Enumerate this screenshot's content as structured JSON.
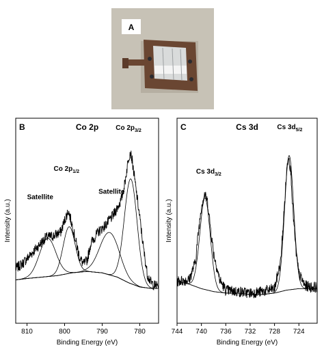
{
  "photo": {
    "label": "A",
    "colors": {
      "background": "#c7c2b6",
      "board": "#6a4632",
      "foil": "#d9dbdb",
      "label_box": "#ffffff"
    }
  },
  "chart_data": [
    {
      "type": "line",
      "panel_label": "B",
      "title": "Co 2p",
      "xlabel": "Binding Energy (eV)",
      "ylabel": "Intensity (a.u.)",
      "xlim": [
        813,
        775
      ],
      "x_reversed": true,
      "xticks": [
        810,
        800,
        790,
        780
      ],
      "yticks": false,
      "grid": false,
      "annotations": [
        {
          "text": "Satellite",
          "x": 806.5,
          "y": 0.63
        },
        {
          "text": "Co 2p",
          "sub": "1/2",
          "x": 799.5,
          "y": 0.83
        },
        {
          "text": "Satellite",
          "x": 787.5,
          "y": 0.67
        },
        {
          "text": "Co 2p",
          "sub": "3/2",
          "x": 783,
          "y": 1.12
        }
      ],
      "series": [
        {
          "type": "background",
          "x": [
            813,
            810,
            806,
            802,
            798,
            794,
            790,
            786,
            783,
            780,
            777,
            775
          ],
          "values": [
            0.06,
            0.07,
            0.08,
            0.09,
            0.11,
            0.12,
            0.11,
            0.08,
            0.04,
            0.01,
            0.0,
            0.0
          ]
        },
        {
          "type": "fit_peak",
          "center": 804.5,
          "height": 0.27,
          "width": 2.2
        },
        {
          "type": "fit_peak",
          "center": 798.8,
          "height": 0.33,
          "width": 1.6
        },
        {
          "type": "fit_peak",
          "center": 788.0,
          "height": 0.3,
          "width": 2.6
        },
        {
          "type": "fit_peak",
          "center": 782.4,
          "height": 0.74,
          "width": 1.7
        },
        {
          "type": "measured",
          "x": [
            813,
            811,
            809,
            807,
            805,
            803,
            801,
            800,
            799,
            798,
            797,
            796,
            795,
            794,
            793,
            791,
            789,
            787,
            785,
            784,
            783,
            782.5,
            782,
            781,
            780,
            779,
            778,
            777,
            776,
            775
          ],
          "values": [
            0.14,
            0.18,
            0.24,
            0.3,
            0.36,
            0.37,
            0.4,
            0.48,
            0.55,
            0.45,
            0.33,
            0.22,
            0.17,
            0.2,
            0.32,
            0.4,
            0.45,
            0.52,
            0.62,
            0.74,
            0.92,
            0.97,
            0.9,
            0.7,
            0.5,
            0.28,
            0.1,
            0.04,
            0.02,
            0.02
          ]
        }
      ]
    },
    {
      "type": "line",
      "panel_label": "C",
      "title": "Cs 3d",
      "xlabel": "Binding Energy (eV)",
      "ylabel": "Intensity (a.u.)",
      "xlim": [
        744,
        721
      ],
      "x_reversed": true,
      "xticks": [
        744,
        740,
        736,
        732,
        728,
        724
      ],
      "yticks": false,
      "grid": false,
      "annotations": [
        {
          "text": "Cs 3d",
          "sub": "3/2",
          "x": 738.8,
          "y": 0.82
        },
        {
          "text": "Cs 3d",
          "sub": "5/2",
          "x": 725.5,
          "y": 1.12
        }
      ],
      "series": [
        {
          "type": "background",
          "x": [
            744,
            742,
            740,
            738,
            736,
            734,
            732,
            730,
            728,
            726,
            724,
            722,
            721
          ],
          "values": [
            0.09,
            0.07,
            0.04,
            0.02,
            0.01,
            0.01,
            0.0,
            0.0,
            0.01,
            0.03,
            0.04,
            0.04,
            0.04
          ]
        },
        {
          "type": "fit_peak",
          "center": 739.4,
          "height": 0.62,
          "width": 0.85
        },
        {
          "type": "fit_peak",
          "center": 725.6,
          "height": 0.91,
          "width": 0.75
        },
        {
          "type": "measured",
          "x": [
            744,
            742,
            741,
            740.5,
            740,
            739.5,
            739,
            738.5,
            738,
            737,
            736,
            734,
            732,
            730,
            728,
            727,
            726.5,
            726,
            725.7,
            725.3,
            725,
            724.5,
            724,
            723,
            722,
            721
          ],
          "values": [
            0.09,
            0.1,
            0.22,
            0.42,
            0.6,
            0.68,
            0.63,
            0.45,
            0.28,
            0.1,
            0.03,
            0.02,
            0.01,
            0.02,
            0.04,
            0.22,
            0.52,
            0.84,
            0.95,
            0.82,
            0.58,
            0.3,
            0.14,
            0.06,
            0.05,
            0.05
          ]
        }
      ]
    }
  ]
}
